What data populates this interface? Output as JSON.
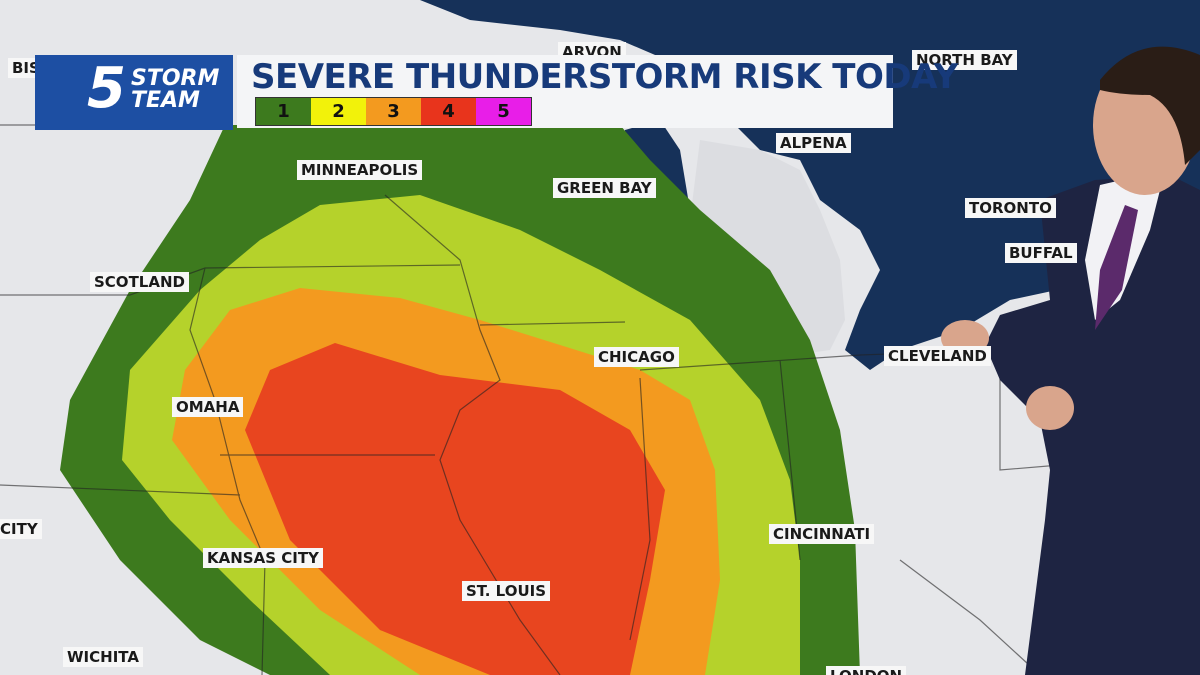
{
  "header": {
    "logo": {
      "number": "5",
      "line1": "STORM",
      "line2": "TEAM"
    },
    "title": "SEVERE THUNDERSTORM RISK TODAY",
    "levels": [
      {
        "label": "1",
        "color": "#3d7a1e"
      },
      {
        "label": "2",
        "color": "#f2f20a"
      },
      {
        "label": "3",
        "color": "#f39a1f"
      },
      {
        "label": "4",
        "color": "#e8341c"
      },
      {
        "label": "5",
        "color": "#e81ee8"
      }
    ]
  },
  "map": {
    "cities": [
      "BISMARCK",
      "ARVON",
      "NORTH BAY",
      "ALPENA",
      "MINNEAPOLIS",
      "GREEN BAY",
      "TORONTO",
      "BUFFAL",
      "SCOTLAND",
      "CHICAGO",
      "CLEVELAND",
      "OMAHA",
      "CITY",
      "CINCINNATI",
      "KANSAS CITY",
      "ST. LOUIS",
      "WICHITA",
      "LONDON"
    ]
  }
}
